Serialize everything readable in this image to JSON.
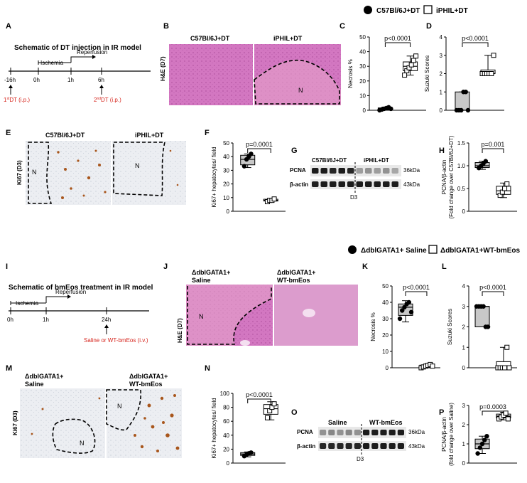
{
  "top": {
    "legend": {
      "filled": "C57Bl/6J+DT",
      "open": "iPHIL+DT"
    },
    "A": {
      "label": "A",
      "title": "Schematic of DT injection in IR model",
      "ischemia": "Ischemia",
      "reperfusion": "Reperfusion",
      "times": [
        "-16h",
        "0h",
        "1h",
        "6h"
      ],
      "dt1_num": "1",
      "dt1_sup": "st",
      "dt1_rest": "DT (i.p.)",
      "dt2_num": "2",
      "dt2_sup": "nd",
      "dt2_rest": "DT (i.p.)"
    },
    "B": {
      "label": "B",
      "cond1": "C57Bl/6J+DT",
      "cond2": "iPHIL+DT",
      "stain": "H&E (D7)",
      "n": "N"
    },
    "E": {
      "label": "E",
      "cond1": "C57Bl/6J+DT",
      "cond2": "iPHIL+DT",
      "stain": "Ki67 (D3)",
      "n1": "N",
      "n2": "N"
    },
    "G": {
      "label": "G",
      "cond1": "C57Bl/6J+DT",
      "cond2": "iPHIL+DT",
      "band1": "PCNA",
      "band2": "β-actin",
      "kda1": "36kDa",
      "kda2": "43kDa",
      "day": "D3"
    }
  },
  "bottom": {
    "legend": {
      "filled": "ΔdblGATA1+ Saline",
      "open": "ΔdblGATA1+WT-bmEos"
    },
    "I": {
      "label": "I",
      "title": "Schematic of bmEos treatment in IR model",
      "ischemia": "Ischemia",
      "reperfusion": "Reperfusion",
      "times": [
        "0h",
        "1h",
        "24h"
      ],
      "treatment": "Saline or WT-bmEos (i.v.)"
    },
    "J": {
      "label": "J",
      "cond1a": "ΔdblGATA1+",
      "cond1b": "Saline",
      "cond2a": "ΔdblGATA1+",
      "cond2b": "WT-bmEos",
      "stain": "H&E (D7)",
      "n": "N"
    },
    "M": {
      "label": "M",
      "cond1a": "ΔdblGATA1+",
      "cond1b": "Saline",
      "cond2a": "ΔdblGATA1+",
      "cond2b": "WT-bmEos",
      "stain": "Ki67 (D3)",
      "n1": "N",
      "n2": "N"
    },
    "O": {
      "label": "O",
      "cond1": "Saline",
      "cond2": "WT-bmEos",
      "band1": "PCNA",
      "band2": "β-actin",
      "kda1": "36kDa",
      "kda2": "43kDa",
      "day": "D3"
    }
  },
  "chart_data": [
    {
      "panel": "C",
      "type": "box",
      "ylabel": "Necrosis %",
      "ylim": [
        0,
        50
      ],
      "yticks": [
        0,
        10,
        20,
        30,
        40,
        50
      ],
      "pvalue": "p<0.0001",
      "series": [
        {
          "group": "C57Bl/6J+DT",
          "marker": "filled",
          "values": [
            0,
            0.5,
            1,
            1.5,
            2,
            1
          ],
          "box": [
            0,
            0.3,
            1,
            1.6,
            2.2
          ]
        },
        {
          "group": "iPHIL+DT",
          "marker": "open",
          "values": [
            24,
            27,
            29,
            31,
            34,
            37
          ],
          "box": [
            24,
            27,
            30,
            33,
            37
          ]
        }
      ]
    },
    {
      "panel": "D",
      "type": "box",
      "ylabel": "Suzuki Scores",
      "ylim": [
        0,
        4
      ],
      "yticks": [
        0,
        1,
        2,
        3,
        4
      ],
      "pvalue": "p<0.0001",
      "series": [
        {
          "group": "C57Bl/6J+DT",
          "marker": "filled",
          "values": [
            0,
            0,
            0,
            1,
            1,
            0
          ],
          "box": [
            0,
            0,
            0,
            1,
            1
          ]
        },
        {
          "group": "iPHIL+DT",
          "marker": "open",
          "values": [
            2,
            2,
            2,
            2,
            2,
            3
          ],
          "box": [
            2,
            2,
            2,
            2.2,
            3
          ]
        }
      ]
    },
    {
      "panel": "F",
      "type": "box",
      "ylabel": "Ki67+ hepatocytes/ field",
      "ylim": [
        0,
        50
      ],
      "yticks": [
        0,
        10,
        20,
        30,
        40,
        50
      ],
      "pvalue": "p=0.0001",
      "series": [
        {
          "group": "C57Bl/6J+DT",
          "marker": "filled",
          "values": [
            33,
            38,
            40,
            42
          ],
          "box": [
            32,
            34,
            38,
            41,
            42
          ]
        },
        {
          "group": "iPHIL+DT",
          "marker": "open",
          "values": [
            7,
            8,
            8,
            9
          ],
          "box": [
            6.5,
            7.5,
            8,
            8.8,
            9.5
          ]
        }
      ]
    },
    {
      "panel": "H",
      "type": "box",
      "ylabel": "PCNA/β-actin",
      "ylabel2": "(Fold change over C57Bl/6J+DT)",
      "ylim": [
        0,
        1.5
      ],
      "yticks": [
        0,
        0.5,
        1.0,
        1.5
      ],
      "pvalue": "p=0.001",
      "series": [
        {
          "group": "C57Bl/6J+DT",
          "marker": "filled",
          "values": [
            0.95,
            1.0,
            1.05,
            1.1
          ],
          "box": [
            0.92,
            0.96,
            1.0,
            1.07,
            1.1
          ]
        },
        {
          "group": "iPHIL+DT",
          "marker": "open",
          "values": [
            0.35,
            0.42,
            0.5,
            0.6
          ],
          "box": [
            0.3,
            0.37,
            0.45,
            0.55,
            0.62
          ]
        }
      ]
    },
    {
      "panel": "K",
      "type": "box",
      "ylabel": "Necrosis %",
      "ylim": [
        0,
        50
      ],
      "yticks": [
        0,
        10,
        20,
        30,
        40,
        50
      ],
      "pvalue": "p<0.0001",
      "series": [
        {
          "group": "ΔdblGATA1+ Saline",
          "marker": "filled",
          "values": [
            30,
            35,
            37,
            39,
            40,
            34
          ],
          "box": [
            28,
            32,
            37,
            39,
            41
          ]
        },
        {
          "group": "ΔdblGATA1+WT-bmEos",
          "marker": "open",
          "values": [
            0,
            0.5,
            1,
            1.5,
            2,
            1
          ],
          "box": [
            0,
            0.3,
            1,
            1.6,
            2.2
          ]
        }
      ]
    },
    {
      "panel": "L",
      "type": "box",
      "ylabel": "Suzuki Scores",
      "ylim": [
        0,
        4
      ],
      "yticks": [
        0,
        1,
        2,
        3,
        4
      ],
      "pvalue": "p<0.0001",
      "series": [
        {
          "group": "ΔdblGATA1+ Saline",
          "marker": "filled",
          "values": [
            3,
            3,
            3,
            3,
            2,
            2
          ],
          "box": [
            2,
            2,
            3,
            3,
            3
          ]
        },
        {
          "group": "ΔdblGATA1+WT-bmEos",
          "marker": "open",
          "values": [
            0,
            0,
            0,
            0,
            1,
            0
          ],
          "box": [
            0,
            0,
            0,
            0.3,
            1
          ]
        }
      ]
    },
    {
      "panel": "N",
      "type": "box",
      "ylabel": "Ki67+ hepatocytes/ field",
      "ylim": [
        0,
        100
      ],
      "yticks": [
        0,
        20,
        40,
        60,
        80,
        100
      ],
      "pvalue": "p<0.0001",
      "series": [
        {
          "group": "ΔdblGATA1+ Saline",
          "marker": "filled",
          "values": [
            10,
            12,
            14,
            15
          ],
          "box": [
            9,
            11,
            13,
            15,
            16
          ]
        },
        {
          "group": "ΔdblGATA1+WT-bmEos",
          "marker": "open",
          "values": [
            65,
            75,
            80,
            85
          ],
          "box": [
            62,
            70,
            78,
            84,
            88
          ]
        }
      ]
    },
    {
      "panel": "P",
      "type": "box",
      "ylabel": "PCNA/β-actin",
      "ylabel2": "(fold change over Saline)",
      "ylim": [
        0,
        3
      ],
      "yticks": [
        0,
        1,
        2,
        3
      ],
      "pvalue": "p=0.0003",
      "series": [
        {
          "group": "ΔdblGATA1+ Saline",
          "marker": "filled",
          "values": [
            0.5,
            0.8,
            1.0,
            1.2,
            1.4
          ],
          "box": [
            0.5,
            0.75,
            1.0,
            1.25,
            1.4
          ]
        },
        {
          "group": "ΔdblGATA1+WT-bmEos",
          "marker": "open",
          "values": [
            2.3,
            2.4,
            2.5,
            2.6,
            2.3
          ],
          "box": [
            2.25,
            2.35,
            2.45,
            2.55,
            2.65
          ]
        }
      ]
    }
  ]
}
